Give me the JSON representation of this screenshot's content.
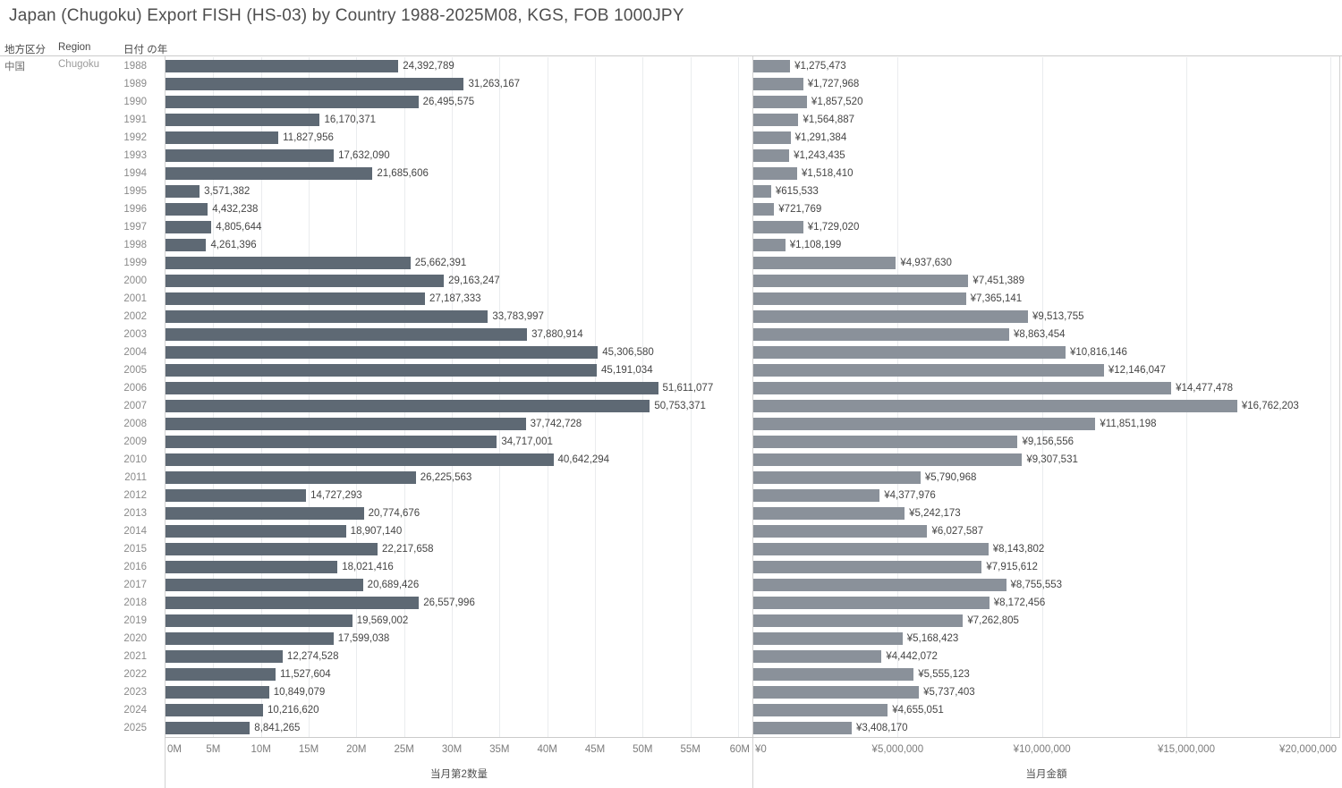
{
  "title": "Japan (Chugoku) Export FISH (HS-03) by Country 1988-2025M08, KGS, FOB 1000JPY",
  "columns": {
    "region_jp": "地方区分",
    "region": "Region",
    "year": "日付 の年"
  },
  "region": {
    "jp": "中国",
    "en": "Chugoku"
  },
  "chart_data": {
    "type": "bar",
    "orientation": "horizontal",
    "grid": true,
    "categories": [
      "1988",
      "1989",
      "1990",
      "1991",
      "1992",
      "1993",
      "1994",
      "1995",
      "1996",
      "1997",
      "1998",
      "1999",
      "2000",
      "2001",
      "2002",
      "2003",
      "2004",
      "2005",
      "2006",
      "2007",
      "2008",
      "2009",
      "2010",
      "2011",
      "2012",
      "2013",
      "2014",
      "2015",
      "2016",
      "2017",
      "2018",
      "2019",
      "2020",
      "2021",
      "2022",
      "2023",
      "2024",
      "2025"
    ],
    "series": [
      {
        "name": "当月第2数量",
        "value_prefix": "",
        "bar_color": "#5e6974",
        "axis_max": 61500000,
        "ticks": [
          {
            "label": "0M",
            "value": 0
          },
          {
            "label": "5M",
            "value": 5000000
          },
          {
            "label": "10M",
            "value": 10000000
          },
          {
            "label": "15M",
            "value": 15000000
          },
          {
            "label": "20M",
            "value": 20000000
          },
          {
            "label": "25M",
            "value": 25000000
          },
          {
            "label": "30M",
            "value": 30000000
          },
          {
            "label": "35M",
            "value": 35000000
          },
          {
            "label": "40M",
            "value": 40000000
          },
          {
            "label": "45M",
            "value": 45000000
          },
          {
            "label": "50M",
            "value": 50000000
          },
          {
            "label": "55M",
            "value": 55000000
          },
          {
            "label": "60M",
            "value": 60000000
          }
        ],
        "values": [
          24392789,
          31263167,
          26495575,
          16170371,
          11827956,
          17632090,
          21685606,
          3571382,
          4432238,
          4805644,
          4261396,
          25662391,
          29163247,
          27187333,
          33783997,
          37880914,
          45306580,
          45191034,
          51611077,
          50753371,
          37742728,
          34717001,
          40642294,
          26225563,
          14727293,
          20774676,
          18907140,
          22217658,
          18021416,
          20689426,
          26557996,
          19569002,
          17599038,
          12274528,
          11527604,
          10849079,
          10216620,
          8841265
        ]
      },
      {
        "name": "当月金額",
        "value_prefix": "¥",
        "bar_color": "#8a919a",
        "axis_max": 20300000,
        "ticks": [
          {
            "label": "¥0",
            "value": 0
          },
          {
            "label": "¥5,000,000",
            "value": 5000000
          },
          {
            "label": "¥10,000,000",
            "value": 10000000
          },
          {
            "label": "¥15,000,000",
            "value": 15000000
          },
          {
            "label": "¥20,000,000",
            "value": 20000000
          }
        ],
        "values": [
          1275473,
          1727968,
          1857520,
          1564887,
          1291384,
          1243435,
          1518410,
          615533,
          721769,
          1729020,
          1108199,
          4937630,
          7451389,
          7365141,
          9513755,
          8863454,
          10816146,
          12146047,
          14477478,
          16762203,
          11851198,
          9156556,
          9307531,
          5790968,
          4377976,
          5242173,
          6027587,
          8143802,
          7915612,
          8755553,
          8172456,
          7262805,
          5168423,
          4442072,
          5555123,
          5737403,
          4655051,
          3408170
        ]
      }
    ]
  }
}
